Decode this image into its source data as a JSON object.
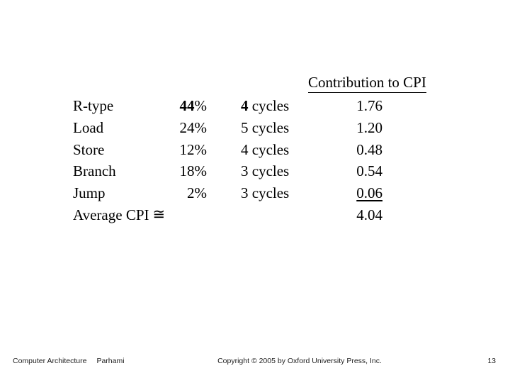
{
  "slide": {
    "table_header": "Contribution to CPI",
    "rows": [
      {
        "instruction": "R-type",
        "frequency": "44",
        "percent": "%",
        "cycles": "4",
        "cycles_word": " cycles",
        "contribution": "1.76"
      },
      {
        "instruction": "Load",
        "frequency": "24",
        "percent": "%",
        "cycles": "5",
        "cycles_word": " cycles",
        "contribution": "1.20"
      },
      {
        "instruction": "Store",
        "frequency": "12",
        "percent": "%",
        "cycles": "4",
        "cycles_word": " cycles",
        "contribution": "0.48"
      },
      {
        "instruction": "Branch",
        "frequency": "18",
        "percent": "%",
        "cycles": "3",
        "cycles_word": " cycles",
        "contribution": "0.54"
      },
      {
        "instruction": "Jump",
        "frequency": "2",
        "percent": "%",
        "cycles": "3",
        "cycles_word": " cycles",
        "contribution": "0.06"
      }
    ],
    "average": {
      "label": "Average CPI",
      "approx_symbol": "≅",
      "value": "4.04"
    },
    "footer": {
      "book_title": "Computer Architecture",
      "author": "Parhami",
      "copyright": "Copyright © 2005 by Oxford University Press, Inc.",
      "page_number": "13"
    }
  }
}
